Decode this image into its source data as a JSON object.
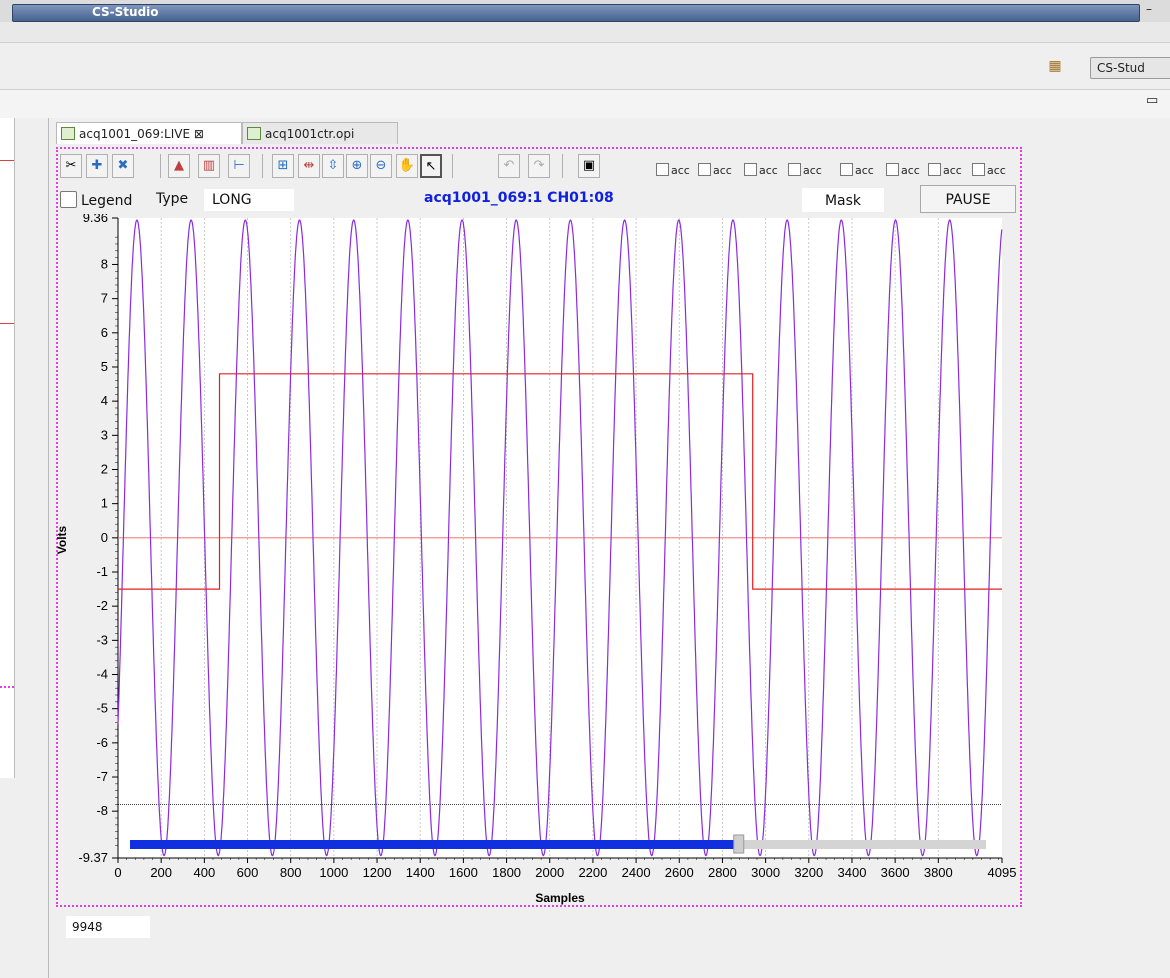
{
  "window": {
    "title": "CS-Studio"
  },
  "perspective": {
    "label": "CS-Stud"
  },
  "tabs": [
    {
      "label": "acq1001_069:LIVE ⊠"
    },
    {
      "label": "acq1001ctr.opi"
    }
  ],
  "toolbar": {
    "checkbox_label": "acc",
    "checkbox_count": 8
  },
  "controls": {
    "legend_label": "Legend",
    "type_label": "Type",
    "type_value": "LONG",
    "mask_label": "Mask",
    "pause_label": "PAUSE"
  },
  "counter": {
    "value": "9948"
  },
  "chart_data": {
    "type": "line",
    "title": "acq1001_069:1 CH01:08",
    "xlabel": "Samples",
    "ylabel": "Volts",
    "xlim": [
      0,
      4095
    ],
    "ylim": [
      -9.37,
      9.36
    ],
    "x_ticks": [
      "0",
      "200",
      "400",
      "600",
      "800",
      "1000",
      "1200",
      "1400",
      "1600",
      "1800",
      "2000",
      "2200",
      "2400",
      "2600",
      "2800",
      "3000",
      "3200",
      "3400",
      "3600",
      "3800",
      "4095"
    ],
    "y_ticks": [
      "9.36",
      "8",
      "7",
      "6",
      "5",
      "4",
      "3",
      "2",
      "1",
      "0",
      "-1",
      "-2",
      "-3",
      "-4",
      "-5",
      "-6",
      "-7",
      "-8",
      "-9.37"
    ],
    "grid": true,
    "colors": {
      "signal": "#8a2be2",
      "gate": "#e02020",
      "zero": "#f08080"
    },
    "series": [
      {
        "kind": "sine",
        "amplitude": 9.3,
        "period_samples": 251,
        "phase_samples": 25
      },
      {
        "kind": "gate",
        "x": [
          0,
          470,
          470,
          2940,
          2940,
          4095
        ],
        "y": [
          -1.5,
          -1.5,
          4.8,
          4.8,
          -1.5,
          -1.5
        ]
      }
    ],
    "threshold_y": -7.8,
    "scrollbar": {
      "position": 0.71,
      "color": "#1030e0"
    }
  }
}
